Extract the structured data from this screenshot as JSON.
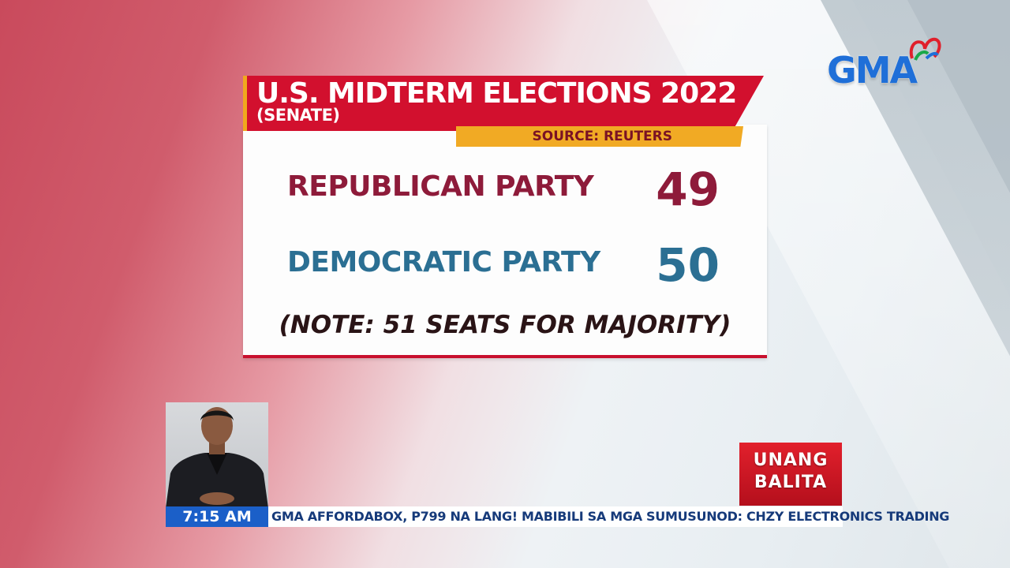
{
  "broadcast": {
    "network_logo": "GMA",
    "show_logo": [
      "UNANG",
      "BALITA"
    ]
  },
  "card": {
    "title": "U.S. MIDTERM ELECTIONS 2022",
    "subtitle": "(SENATE)",
    "source": "SOURCE: REUTERS",
    "rows": [
      {
        "label": "REPUBLICAN PARTY",
        "value": "49"
      },
      {
        "label": "DEMOCRATIC PARTY",
        "value": "50"
      }
    ],
    "note": "(NOTE: 51 SEATS FOR MAJORITY)"
  },
  "ticker": {
    "time": "7:15 AM",
    "text": "GMA AFFORDABOX, P799 NA LANG!  MABIBILI SA MGA SUMUSUNOD: CHZY ELECTRONICS TRADING"
  },
  "colors": {
    "title_red": "#d2102e",
    "source_yellow": "#f1aa24",
    "republican": "#8e1b3a",
    "democratic": "#2b6f93",
    "time_blue": "#1b5fc8"
  }
}
